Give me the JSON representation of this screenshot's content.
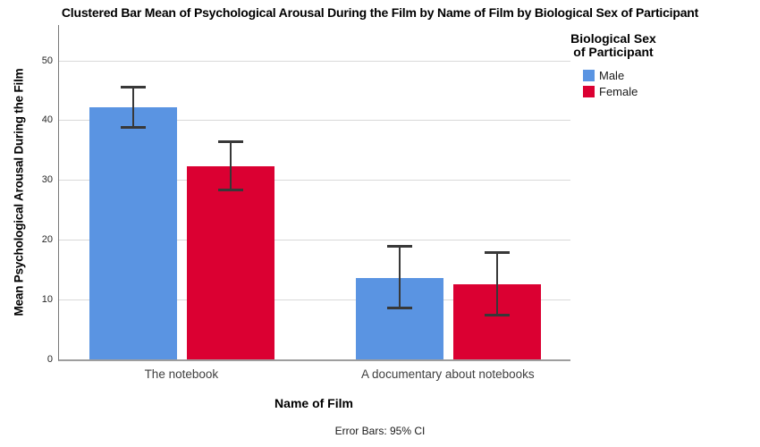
{
  "chart_data": {
    "type": "bar",
    "title": "Clustered Bar Mean of Psychological Arousal During the Film by Name of Film by Biological Sex of Participant",
    "xlabel": "Name of Film",
    "ylabel": "Mean Psychological Arousal During the Film",
    "footnote": "Error Bars: 95% CI",
    "categories": [
      "The notebook",
      "A documentary about notebooks"
    ],
    "series": [
      {
        "name": "Male",
        "color": "#5A94E2",
        "values": [
          42.2,
          13.7
        ],
        "ci_low": [
          38.8,
          8.5
        ],
        "ci_high": [
          45.7,
          19.0
        ]
      },
      {
        "name": "Female",
        "color": "#DB0032",
        "values": [
          32.4,
          12.6
        ],
        "ci_low": [
          28.3,
          7.3
        ],
        "ci_high": [
          36.6,
          17.9
        ]
      }
    ],
    "ylim": [
      0,
      56
    ],
    "yticks": [
      0,
      10,
      20,
      30,
      40,
      50
    ],
    "grid": true,
    "legend": {
      "title": "Biological Sex of Participant",
      "position": "top-right"
    }
  }
}
